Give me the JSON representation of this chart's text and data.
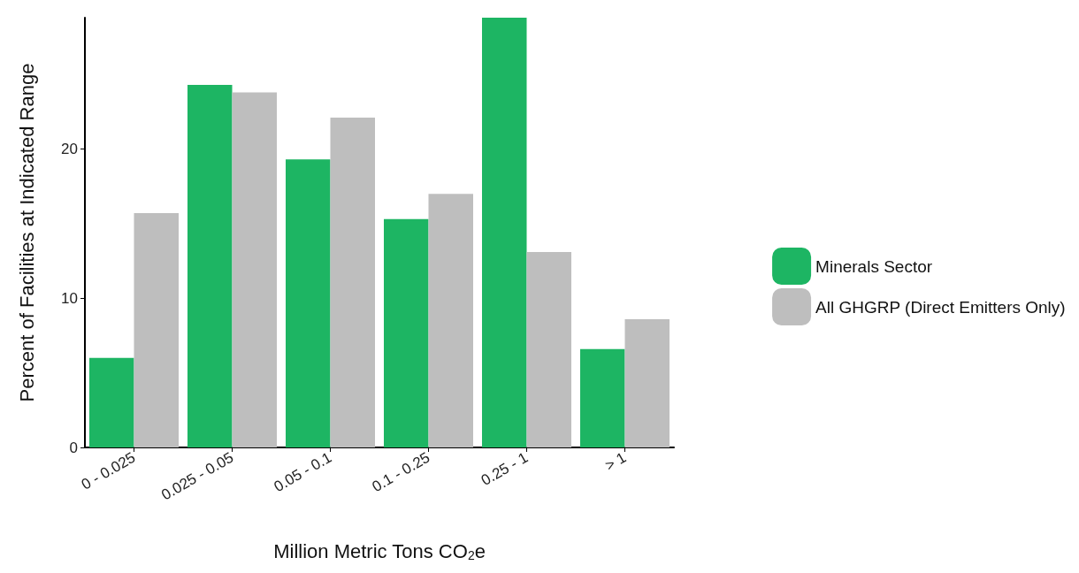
{
  "chart_data": {
    "type": "bar",
    "xlabel": "Million Metric Tons CO$_{2}$e",
    "ylabel": "Percent of Facilities at Indicated Range",
    "categories": [
      "0 - 0.025",
      "0.025 - 0.05",
      "0.05 - 0.1",
      "0.1 - 0.25",
      "0.25 - 1",
      "> 1"
    ],
    "series": [
      {
        "name": "Minerals Sector",
        "color": "#1db563",
        "values": [
          6.0,
          24.3,
          19.3,
          15.3,
          28.8,
          6.6
        ]
      },
      {
        "name": "All GHGRP (Direct Emitters Only)",
        "color": "#bebebe",
        "values": [
          15.7,
          23.8,
          22.1,
          17.0,
          13.1,
          8.6
        ]
      }
    ],
    "ylim": [
      0,
      28.8
    ],
    "yticks": [
      0,
      10,
      20
    ],
    "grid": false,
    "legend": "right"
  }
}
